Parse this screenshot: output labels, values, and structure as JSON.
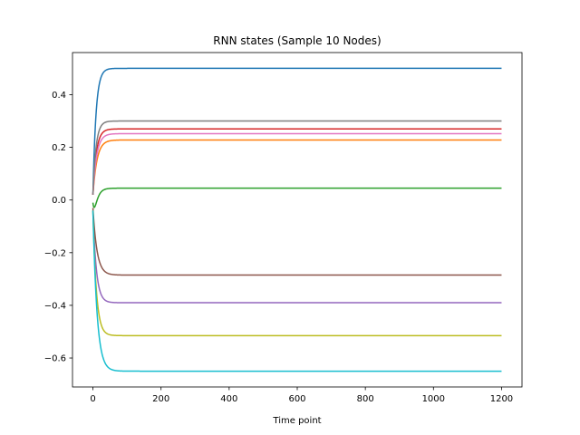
{
  "chart_data": {
    "type": "line",
    "title": "RNN states (Sample 10 Nodes)",
    "xlabel": "Time point",
    "ylabel": "",
    "xlim": [
      -60,
      1260
    ],
    "ylim": [
      -0.71,
      0.56
    ],
    "xticks": [
      0,
      200,
      400,
      600,
      800,
      1000,
      1200
    ],
    "xtick_labels": [
      "0",
      "200",
      "400",
      "600",
      "800",
      "1000",
      "1200"
    ],
    "yticks": [
      -0.6,
      -0.4,
      -0.2,
      0.0,
      0.2,
      0.4
    ],
    "ytick_labels": [
      "−0.6",
      "−0.4",
      "−0.2",
      "0.0",
      "0.2",
      "0.4"
    ],
    "grid": false,
    "legend": "none",
    "x_range": [
      0,
      1200
    ],
    "series": [
      {
        "color": "#1f77b4",
        "start": 0.02,
        "final": 0.5,
        "tau": 9
      },
      {
        "color": "#ff7f0e",
        "start": 0.02,
        "final": 0.228,
        "tau": 12
      },
      {
        "color": "#2ca02c",
        "start": -0.01,
        "final": 0.045,
        "tau": 12,
        "dip": -0.05,
        "dip_at": 6
      },
      {
        "color": "#d62728",
        "start": 0.02,
        "final": 0.27,
        "tau": 10
      },
      {
        "color": "#9467bd",
        "start": -0.04,
        "final": -0.39,
        "tau": 10
      },
      {
        "color": "#8c564b",
        "start": -0.03,
        "final": -0.285,
        "tau": 12
      },
      {
        "color": "#e377c2",
        "start": 0.02,
        "final": 0.252,
        "tau": 11
      },
      {
        "color": "#7f7f7f",
        "start": 0.02,
        "final": 0.3,
        "tau": 9
      },
      {
        "color": "#bcbd22",
        "start": -0.04,
        "final": -0.515,
        "tau": 10
      },
      {
        "color": "#17becf",
        "start": -0.04,
        "final": -0.65,
        "tau": 12
      }
    ]
  }
}
